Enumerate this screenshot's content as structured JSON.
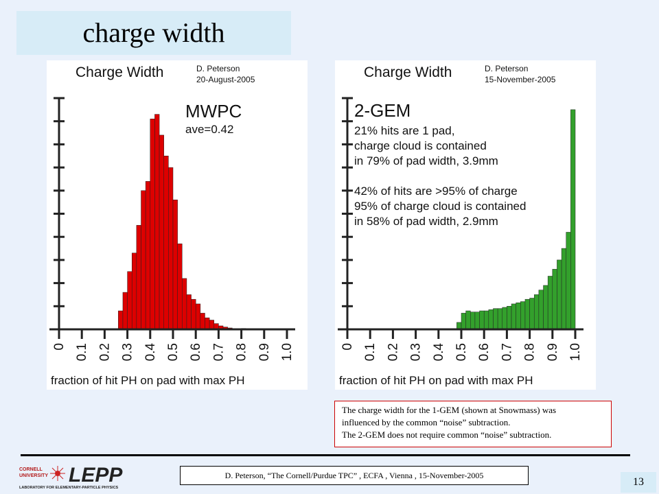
{
  "slide": {
    "title": "charge width",
    "page_number": "13",
    "footer": "D. Peterson,  “The Cornell/Purdue TPC” ,  ECFA , Vienna , 15-November-2005",
    "note_lines": [
      "The charge width for the 1-GEM (shown at Snowmass) was",
      " influenced by the common  “noise”  subtraction.",
      "The 2-GEM does not require common  “noise”  subtraction."
    ],
    "logo": {
      "university": "CORNELL UNIVERSITY",
      "name": "LEPP",
      "tagline": "LABORATORY FOR ELEMENTARY-PARTICLE PHYSICS"
    },
    "colors": {
      "background": "#eaf1fb",
      "title_box": "#d7ecf7",
      "mwpc_bars": "#dd0000",
      "gem_bars": "#33a02c",
      "note_border": "#cc0000"
    }
  },
  "chart_data": [
    {
      "type": "bar",
      "title": "Charge Width",
      "author": "D. Peterson",
      "date": "20-August-2005",
      "annotation_lines": [
        "MWPC",
        "ave=0.42"
      ],
      "xlabel": "fraction of hit PH on pad with max PH",
      "x_ticks": [
        "0",
        "0.1",
        "0.2",
        "0.3",
        "0.4",
        "0.5",
        "0.6",
        "0.7",
        "0.8",
        "0.9",
        "1.0"
      ],
      "xlim": [
        0,
        1.0
      ],
      "ylim": [
        0,
        1.0
      ],
      "bin_width": 0.02,
      "bin_starts": [
        0.26,
        0.28,
        0.3,
        0.32,
        0.34,
        0.36,
        0.38,
        0.4,
        0.42,
        0.44,
        0.46,
        0.48,
        0.5,
        0.52,
        0.54,
        0.56,
        0.58,
        0.6,
        0.62,
        0.64,
        0.66,
        0.68,
        0.7,
        0.72,
        0.74,
        0.8,
        0.86,
        0.92
      ],
      "values": [
        0.08,
        0.16,
        0.25,
        0.33,
        0.45,
        0.6,
        0.64,
        0.91,
        0.93,
        0.84,
        0.75,
        0.7,
        0.56,
        0.37,
        0.22,
        0.15,
        0.13,
        0.11,
        0.07,
        0.05,
        0.04,
        0.025,
        0.015,
        0.01,
        0.006,
        0.004,
        0.003,
        0.002
      ]
    },
    {
      "type": "bar",
      "title": "Charge Width",
      "author": "D. Peterson",
      "date": "15-November-2005",
      "annotation_lines": [
        "2-GEM",
        "21% hits are 1 pad,",
        "charge cloud is contained",
        "in 79% of pad width,  3.9mm",
        "",
        "42% of hits are >95% of charge",
        "95% of charge cloud is contained",
        "in 58% of pad width,    2.9mm"
      ],
      "xlabel": "fraction of hit PH on pad with max PH",
      "x_ticks": [
        "0",
        "0.1",
        "0.2",
        "0.3",
        "0.4",
        "0.5",
        "0.6",
        "0.7",
        "0.8",
        "0.9",
        "1.0"
      ],
      "xlim": [
        0,
        1.0
      ],
      "ylim": [
        0,
        1.0
      ],
      "bin_width": 0.02,
      "bin_starts": [
        0.48,
        0.5,
        0.52,
        0.54,
        0.56,
        0.58,
        0.6,
        0.62,
        0.64,
        0.66,
        0.68,
        0.7,
        0.72,
        0.74,
        0.76,
        0.78,
        0.8,
        0.82,
        0.84,
        0.86,
        0.88,
        0.9,
        0.92,
        0.94,
        0.96,
        0.98
      ],
      "values": [
        0.03,
        0.07,
        0.08,
        0.075,
        0.075,
        0.08,
        0.08,
        0.085,
        0.09,
        0.09,
        0.095,
        0.1,
        0.11,
        0.115,
        0.12,
        0.13,
        0.135,
        0.15,
        0.17,
        0.19,
        0.23,
        0.26,
        0.3,
        0.35,
        0.42,
        0.95
      ]
    }
  ]
}
